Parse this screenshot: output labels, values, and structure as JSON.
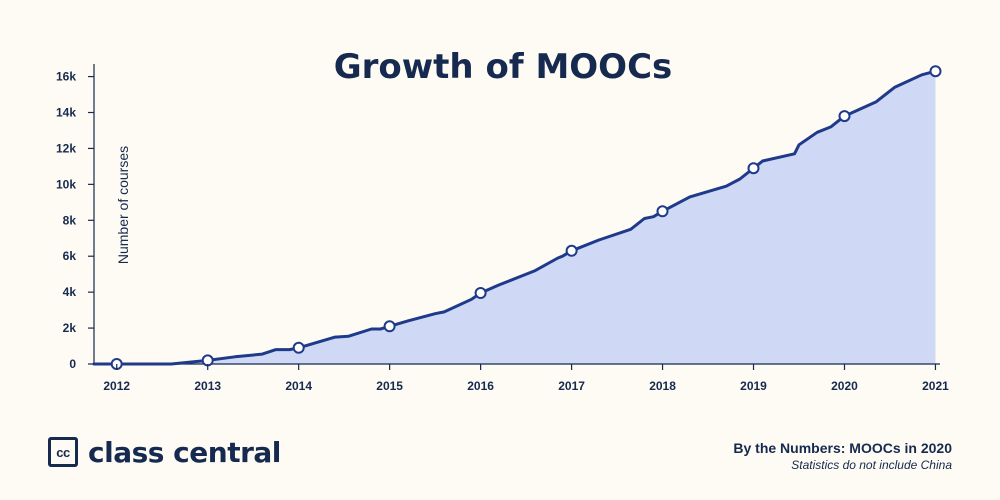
{
  "chart_data": {
    "type": "area",
    "title": "Growth of MOOCs",
    "xlabel": "",
    "ylabel": "Number of courses",
    "x_ticks": [
      "2012",
      "2013",
      "2014",
      "2015",
      "2016",
      "2017",
      "2018",
      "2019",
      "2020",
      "2021"
    ],
    "y_ticks": [
      "0",
      "2k",
      "4k",
      "6k",
      "8k",
      "10k",
      "12k",
      "14k",
      "16k"
    ],
    "xlim": [
      2011.75,
      2021.05
    ],
    "ylim": [
      0,
      16700
    ],
    "grid": false,
    "legend": "none",
    "series": [
      {
        "x": [
          2012,
          2012.6,
          2013,
          2013.3,
          2013.6,
          2013.75,
          2013.9,
          2014,
          2014.2,
          2014.4,
          2014.55,
          2014.8,
          2014.9,
          2015,
          2015.2,
          2015.5,
          2015.6,
          2015.9,
          2016,
          2016.2,
          2016.6,
          2016.85,
          2016.9,
          2017,
          2017.3,
          2017.65,
          2017.8,
          2017.9,
          2018,
          2018.3,
          2018.7,
          2018.85,
          2019,
          2019.1,
          2019.45,
          2019.5,
          2019.7,
          2019.85,
          2020,
          2020.35,
          2020.55,
          2020.85,
          2021
        ],
        "y": [
          0,
          0,
          200,
          400,
          550,
          800,
          800,
          900,
          1200,
          1500,
          1550,
          1950,
          1950,
          2100,
          2400,
          2800,
          2900,
          3600,
          3950,
          4400,
          5200,
          5900,
          6000,
          6300,
          6900,
          7500,
          8100,
          8200,
          8500,
          9300,
          9900,
          10300,
          10900,
          11300,
          11700,
          12200,
          12900,
          13200,
          13800,
          14600,
          15400,
          16100,
          16300
        ],
        "markers_x": [
          2012,
          2013,
          2014,
          2015,
          2016,
          2017,
          2018,
          2019,
          2020,
          2021
        ],
        "markers_y": [
          0,
          200,
          900,
          2100,
          3950,
          6300,
          8500,
          10900,
          13800,
          16300
        ]
      }
    ]
  },
  "colors": {
    "background": "#fdfbf3",
    "line": "#1f3a8a",
    "fill": "#cfd9f5",
    "text": "#16294f"
  },
  "branding": {
    "logo_text": "cc",
    "name": "class central"
  },
  "footnote": {
    "title": "By the Numbers: MOOCs in 2020",
    "subtitle": "Statistics do not include China"
  }
}
